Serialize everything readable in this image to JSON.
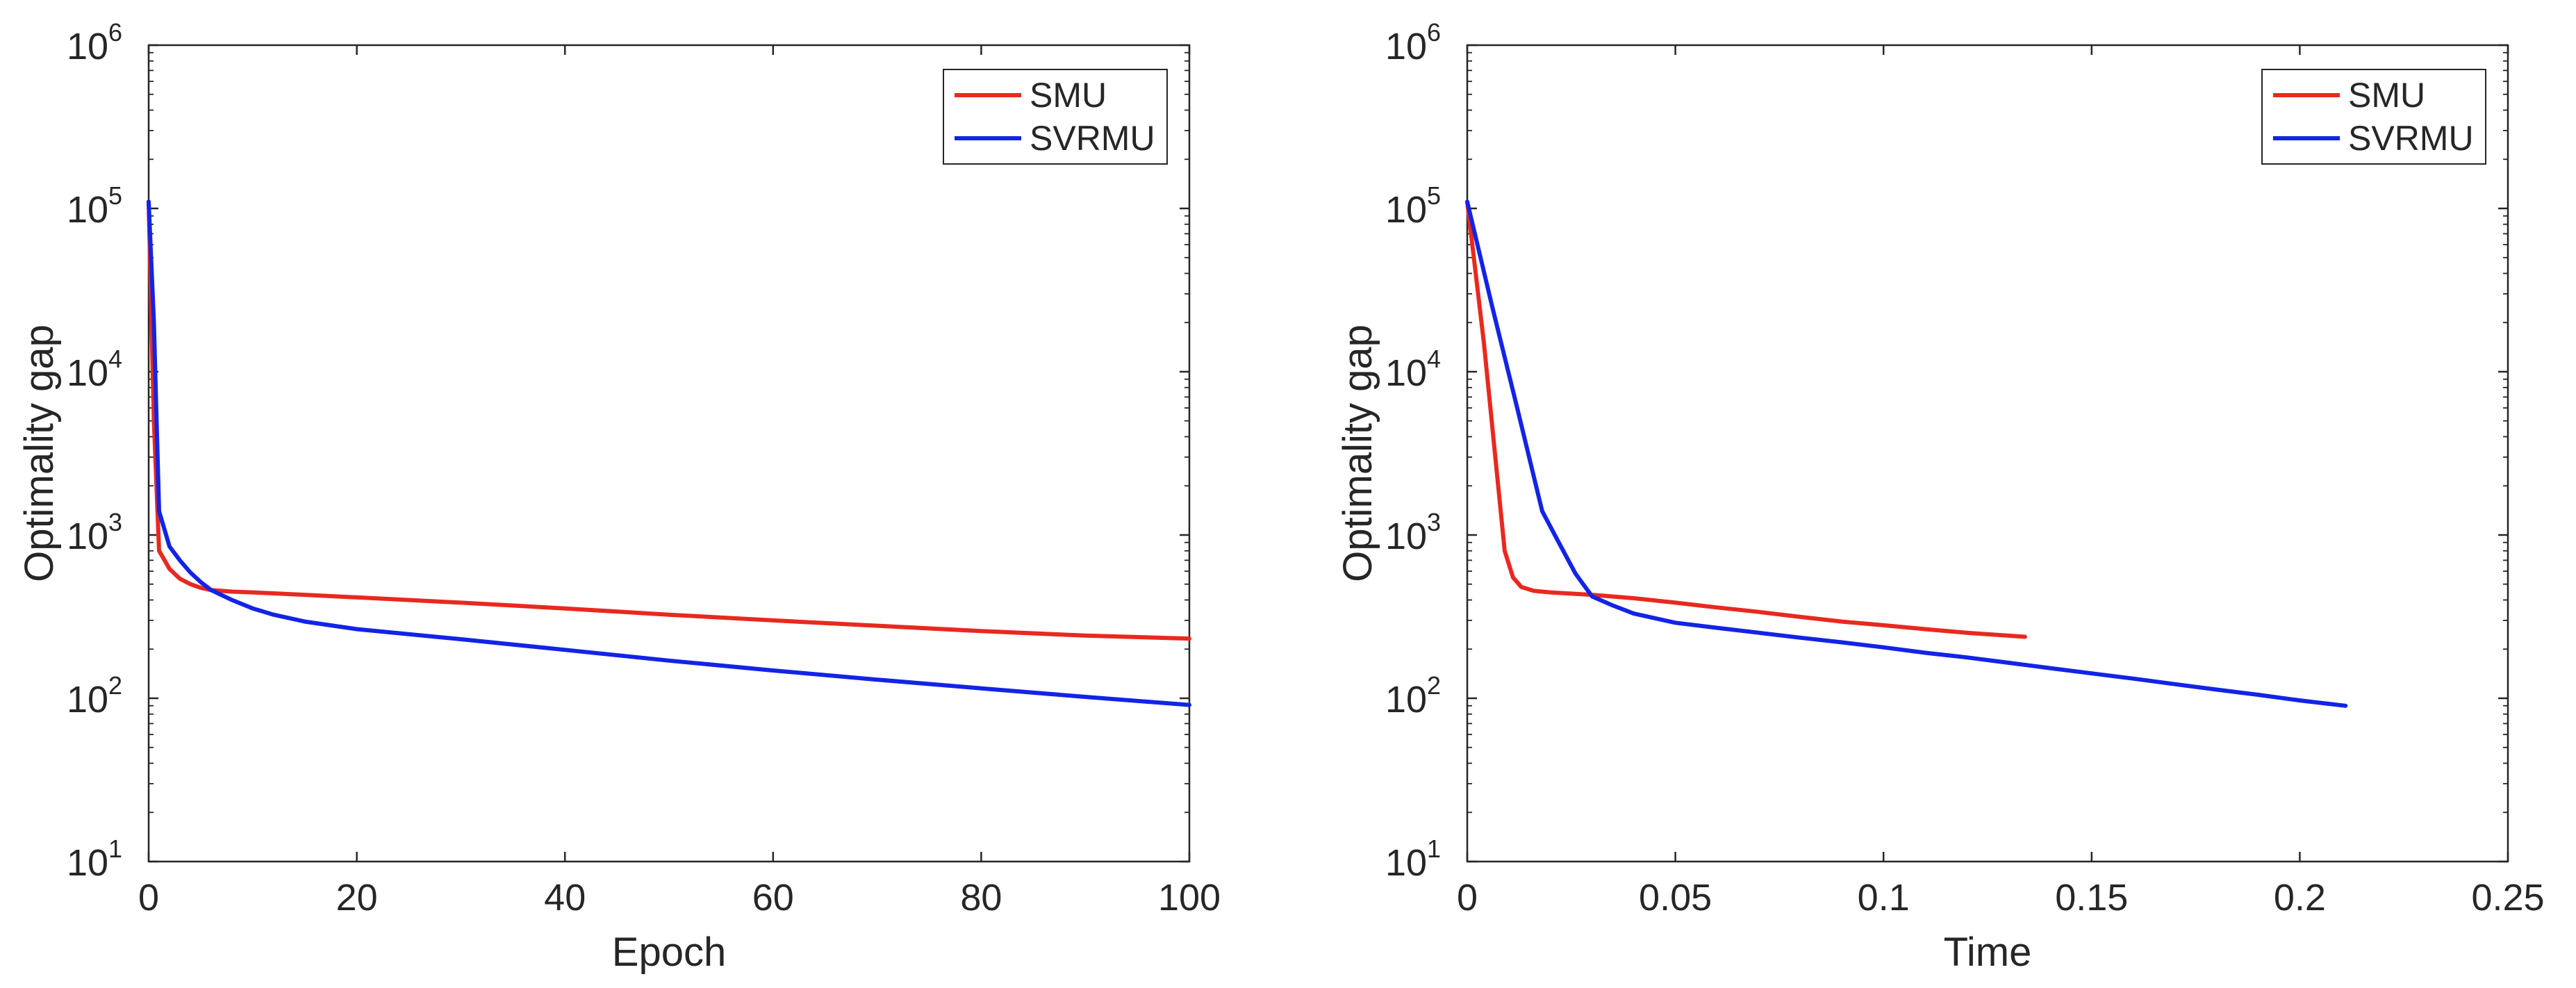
{
  "chart_data": [
    {
      "type": "line",
      "xlabel": "Epoch",
      "ylabel": "Optimality gap",
      "y_scale": "log",
      "xlim": [
        0,
        100
      ],
      "ylim": [
        10,
        1000000
      ],
      "x_ticks": [
        "0",
        "20",
        "40",
        "60",
        "80",
        "100"
      ],
      "y_ticks": [
        {
          "base": "10",
          "exp": "1"
        },
        {
          "base": "10",
          "exp": "2"
        },
        {
          "base": "10",
          "exp": "3"
        },
        {
          "base": "10",
          "exp": "4"
        },
        {
          "base": "10",
          "exp": "5"
        },
        {
          "base": "10",
          "exp": "6"
        }
      ],
      "legend_position": "top-right",
      "grid": false,
      "series": [
        {
          "name": "SMU",
          "color": "#e8291f",
          "x": [
            0,
            0.5,
            1,
            2,
            3,
            4,
            5,
            6,
            8,
            10,
            15,
            20,
            30,
            40,
            50,
            60,
            70,
            80,
            90,
            100
          ],
          "y": [
            110000,
            5000,
            800,
            620,
            540,
            500,
            475,
            460,
            450,
            445,
            430,
            415,
            385,
            355,
            325,
            300,
            278,
            258,
            242,
            232
          ]
        },
        {
          "name": "SVRMU",
          "color": "#1224e6",
          "x": [
            0,
            0.5,
            1,
            2,
            3,
            4,
            5,
            6,
            8,
            10,
            12,
            15,
            20,
            30,
            40,
            50,
            60,
            70,
            80,
            90,
            100
          ],
          "y": [
            110000,
            20000,
            1400,
            850,
            700,
            590,
            515,
            460,
            400,
            355,
            325,
            295,
            265,
            230,
            198,
            170,
            148,
            130,
            115,
            102,
            91
          ]
        }
      ]
    },
    {
      "type": "line",
      "xlabel": "Time",
      "ylabel": "Optimality gap",
      "y_scale": "log",
      "xlim": [
        0,
        0.25
      ],
      "ylim": [
        10,
        1000000
      ],
      "x_ticks": [
        "0",
        "0.05",
        "0.1",
        "0.15",
        "0.2",
        "0.25"
      ],
      "y_ticks": [
        {
          "base": "10",
          "exp": "1"
        },
        {
          "base": "10",
          "exp": "2"
        },
        {
          "base": "10",
          "exp": "3"
        },
        {
          "base": "10",
          "exp": "4"
        },
        {
          "base": "10",
          "exp": "5"
        },
        {
          "base": "10",
          "exp": "6"
        }
      ],
      "legend_position": "top-right",
      "grid": false,
      "series": [
        {
          "name": "SMU",
          "color": "#e8291f",
          "x": [
            0,
            0.004,
            0.009,
            0.011,
            0.013,
            0.016,
            0.02,
            0.03,
            0.04,
            0.05,
            0.06,
            0.07,
            0.08,
            0.09,
            0.1,
            0.11,
            0.12,
            0.134
          ],
          "y": [
            110000,
            15000,
            800,
            550,
            480,
            455,
            445,
            430,
            410,
            385,
            360,
            338,
            315,
            295,
            280,
            265,
            252,
            238
          ]
        },
        {
          "name": "SVRMU",
          "color": "#1224e6",
          "x": [
            0,
            0.006,
            0.012,
            0.018,
            0.022,
            0.026,
            0.03,
            0.035,
            0.04,
            0.05,
            0.06,
            0.07,
            0.08,
            0.09,
            0.1,
            0.11,
            0.12,
            0.13,
            0.14,
            0.15,
            0.16,
            0.17,
            0.18,
            0.19,
            0.2,
            0.211
          ],
          "y": [
            110000,
            25000,
            6000,
            1400,
            900,
            580,
            420,
            370,
            330,
            290,
            270,
            252,
            235,
            220,
            205,
            190,
            178,
            165,
            153,
            142,
            132,
            122,
            113,
            105,
            97,
            90
          ]
        }
      ]
    }
  ]
}
